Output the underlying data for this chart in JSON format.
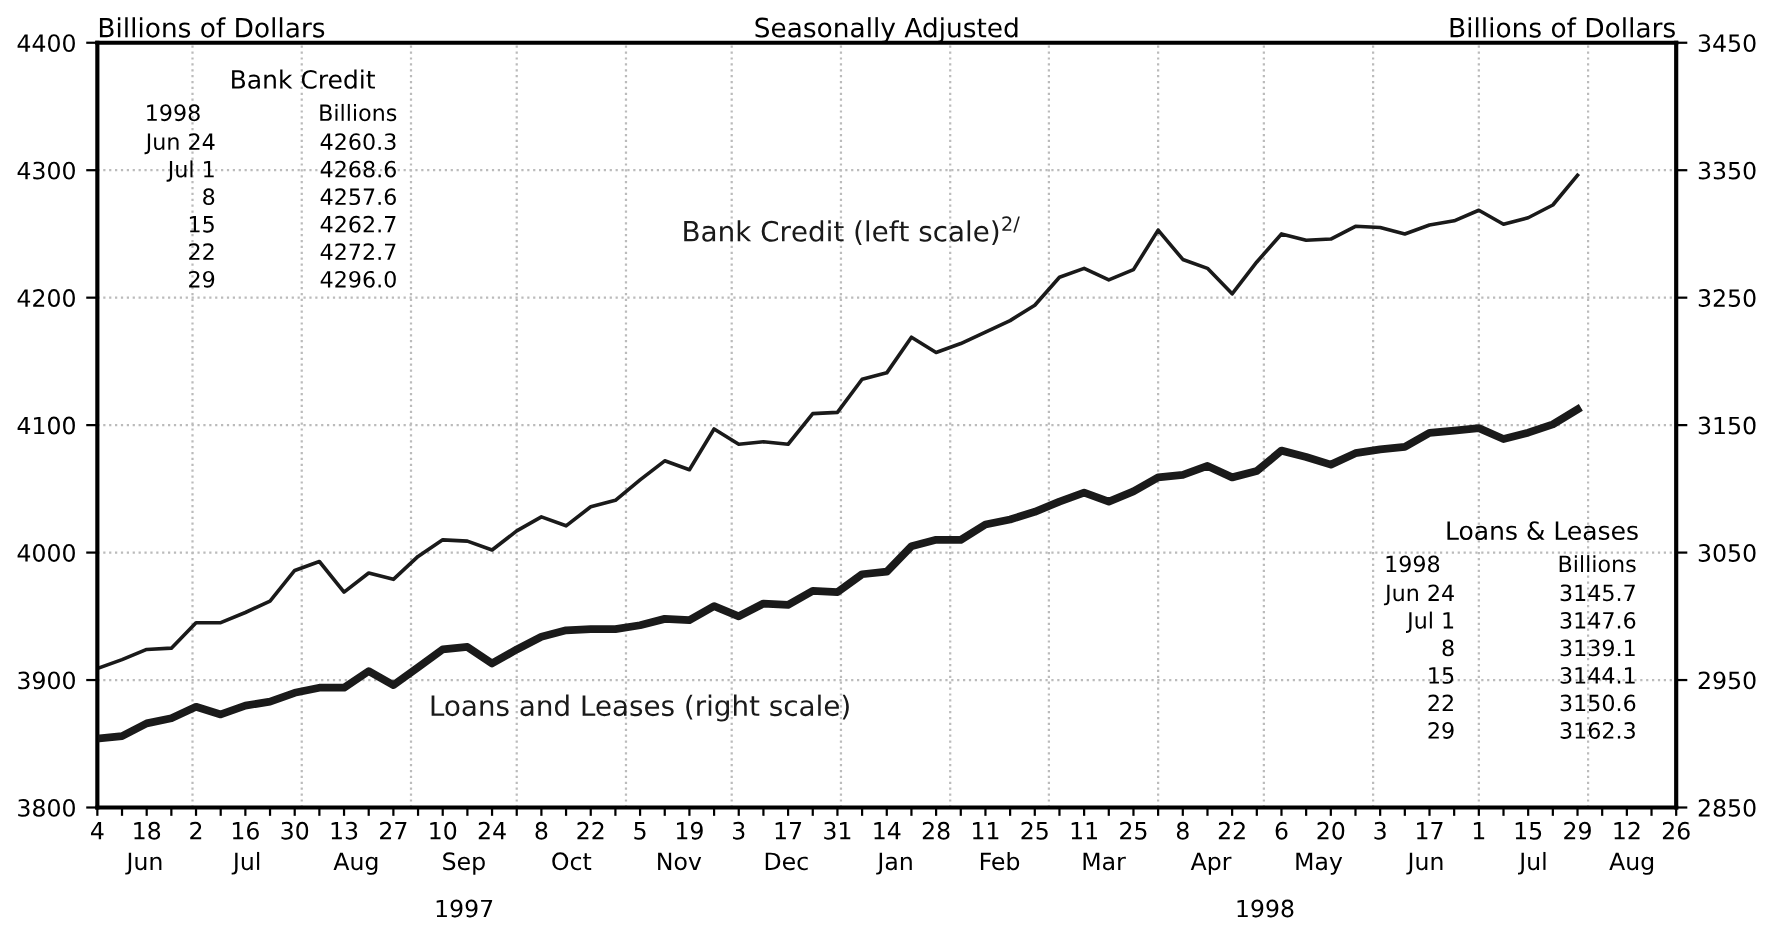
{
  "chart_data": {
    "type": "line",
    "title": "Seasonally Adjusted",
    "ylabel": "Billions of Dollars",
    "y2label": "Billions of Dollars",
    "x": [
      "1997-06-04",
      "1997-06-11",
      "1997-06-18",
      "1997-06-25",
      "1997-07-02",
      "1997-07-09",
      "1997-07-16",
      "1997-07-23",
      "1997-07-30",
      "1997-08-06",
      "1997-08-13",
      "1997-08-20",
      "1997-08-27",
      "1997-09-03",
      "1997-09-10",
      "1997-09-17",
      "1997-09-24",
      "1997-10-01",
      "1997-10-08",
      "1997-10-15",
      "1997-10-22",
      "1997-10-29",
      "1997-11-05",
      "1997-11-12",
      "1997-11-19",
      "1997-11-26",
      "1997-12-03",
      "1997-12-10",
      "1997-12-17",
      "1997-12-24",
      "1997-12-31",
      "1998-01-07",
      "1998-01-14",
      "1998-01-21",
      "1998-01-28",
      "1998-02-04",
      "1998-02-11",
      "1998-02-18",
      "1998-02-25",
      "1998-03-04",
      "1998-03-11",
      "1998-03-18",
      "1998-03-25",
      "1998-04-01",
      "1998-04-08",
      "1998-04-15",
      "1998-04-22",
      "1998-04-29",
      "1998-05-06",
      "1998-05-13",
      "1998-05-20",
      "1998-05-27",
      "1998-06-03",
      "1998-06-10",
      "1998-06-17",
      "1998-06-24",
      "1998-07-01",
      "1998-07-08",
      "1998-07-15",
      "1998-07-22",
      "1998-07-29"
    ],
    "series": [
      {
        "name": "Bank Credit (left scale)$^{2/}$",
        "color": "#1a1a1a",
        "axis": "y",
        "values": [
          3909,
          3916,
          3924,
          3925,
          3945,
          3945,
          3953,
          3962,
          3986,
          3993,
          3969,
          3984,
          3979,
          3997,
          4010,
          4009,
          4002,
          4017,
          4028,
          4021,
          4036,
          4041,
          4057,
          4072,
          4065,
          4097,
          4085,
          4087,
          4085,
          4109,
          4110,
          4136,
          4141,
          4169,
          4157,
          4164,
          4173,
          4182,
          4194,
          4216,
          4223,
          4214,
          4222,
          4253,
          4230,
          4223,
          4203,
          4228,
          4250,
          4245,
          4246,
          4256,
          4255,
          4250,
          4257,
          4260.3,
          4268.6,
          4257.6,
          4262.7,
          4272.7,
          4296.0
        ]
      },
      {
        "name": "Loans and Leases (right scale)",
        "color": "#1a1a1a",
        "axis": "y2",
        "values": [
          2904,
          2906,
          2916,
          2920,
          2929,
          2923,
          2930,
          2933,
          2940,
          2944,
          2944,
          2957,
          2946,
          2960,
          2974,
          2976,
          2963,
          2974,
          2984,
          2989,
          2990,
          2990,
          2993,
          2998,
          2997,
          3008,
          3000,
          3010,
          3009,
          3020,
          3019,
          3033,
          3035,
          3055,
          3060,
          3060,
          3072,
          3076,
          3082,
          3090,
          3097,
          3090,
          3098,
          3109,
          3111,
          3118,
          3109,
          3114,
          3130,
          3125,
          3119,
          3128,
          3131,
          3133,
          3144,
          3145.7,
          3147.6,
          3139.1,
          3144.1,
          3150.6,
          3162.3
        ]
      }
    ],
    "ylim": [
      3800,
      4400
    ],
    "yticks": [
      3800,
      3900,
      4000,
      4100,
      4200,
      4300,
      4400
    ],
    "y2lim": [
      2850,
      3450
    ],
    "y2ticks": [
      2850,
      2950,
      3050,
      3150,
      3250,
      3350,
      3450
    ],
    "xlim": [
      "1997-06-04",
      "1998-08-26"
    ],
    "xticks": [
      {
        "value": "1997-06-04",
        "label": "4"
      },
      {
        "value": "1997-06-11",
        "label": null
      },
      {
        "value": "1997-06-18",
        "label": "18"
      },
      {
        "value": "1997-06-25",
        "label": null
      },
      {
        "value": "1997-07-02",
        "label": "2"
      },
      {
        "value": "1997-07-09",
        "label": null
      },
      {
        "value": "1997-07-16",
        "label": "16"
      },
      {
        "value": "1997-07-23",
        "label": null
      },
      {
        "value": "1997-07-30",
        "label": "30"
      },
      {
        "value": "1997-08-06",
        "label": null
      },
      {
        "value": "1997-08-13",
        "label": "13"
      },
      {
        "value": "1997-08-20",
        "label": null
      },
      {
        "value": "1997-08-27",
        "label": "27"
      },
      {
        "value": "1997-09-03",
        "label": null
      },
      {
        "value": "1997-09-10",
        "label": "10"
      },
      {
        "value": "1997-09-17",
        "label": null
      },
      {
        "value": "1997-09-24",
        "label": "24"
      },
      {
        "value": "1997-10-01",
        "label": null
      },
      {
        "value": "1997-10-08",
        "label": "8"
      },
      {
        "value": "1997-10-15",
        "label": null
      },
      {
        "value": "1997-10-22",
        "label": "22"
      },
      {
        "value": "1997-10-29",
        "label": null
      },
      {
        "value": "1997-11-05",
        "label": "5"
      },
      {
        "value": "1997-11-12",
        "label": null
      },
      {
        "value": "1997-11-19",
        "label": "19"
      },
      {
        "value": "1997-11-26",
        "label": null
      },
      {
        "value": "1997-12-03",
        "label": "3"
      },
      {
        "value": "1997-12-10",
        "label": null
      },
      {
        "value": "1997-12-17",
        "label": "17"
      },
      {
        "value": "1997-12-24",
        "label": null
      },
      {
        "value": "1997-12-31",
        "label": "31"
      },
      {
        "value": "1998-01-07",
        "label": null
      },
      {
        "value": "1998-01-14",
        "label": "14"
      },
      {
        "value": "1998-01-21",
        "label": null
      },
      {
        "value": "1998-01-28",
        "label": "28"
      },
      {
        "value": "1998-02-04",
        "label": null
      },
      {
        "value": "1998-02-11",
        "label": "11"
      },
      {
        "value": "1998-02-18",
        "label": null
      },
      {
        "value": "1998-02-25",
        "label": "25"
      },
      {
        "value": "1998-03-04",
        "label": null
      },
      {
        "value": "1998-03-11",
        "label": "11"
      },
      {
        "value": "1998-03-18",
        "label": null
      },
      {
        "value": "1998-03-25",
        "label": "25"
      },
      {
        "value": "1998-04-01",
        "label": null
      },
      {
        "value": "1998-04-08",
        "label": "8"
      },
      {
        "value": "1998-04-15",
        "label": null
      },
      {
        "value": "1998-04-22",
        "label": "22"
      },
      {
        "value": "1998-04-29",
        "label": null
      },
      {
        "value": "1998-05-06",
        "label": "6"
      },
      {
        "value": "1998-05-13",
        "label": null
      },
      {
        "value": "1998-05-20",
        "label": "20"
      },
      {
        "value": "1998-05-27",
        "label": null
      },
      {
        "value": "1998-06-03",
        "label": "3"
      },
      {
        "value": "1998-06-10",
        "label": null
      },
      {
        "value": "1998-06-17",
        "label": "17"
      },
      {
        "value": "1998-06-24",
        "label": null
      },
      {
        "value": "1998-07-01",
        "label": "1"
      },
      {
        "value": "1998-07-08",
        "label": null
      },
      {
        "value": "1998-07-15",
        "label": "15"
      },
      {
        "value": "1998-07-22",
        "label": null
      },
      {
        "value": "1998-07-29",
        "label": "29"
      },
      {
        "value": "1998-08-05",
        "label": null
      },
      {
        "value": "1998-08-12",
        "label": "12"
      },
      {
        "value": "1998-08-19",
        "label": null
      },
      {
        "value": "1998-08-26",
        "label": "26"
      }
    ],
    "grid": "y",
    "ref_lines": [
      {
        "axis": "x",
        "value": "1997-07-01",
        "color": "#bbbbbb",
        "line_style": "dotted"
      },
      {
        "axis": "x",
        "value": "1997-08-01",
        "color": "#bbbbbb",
        "line_style": "dotted"
      },
      {
        "axis": "x",
        "value": "1997-09-01",
        "color": "#bbbbbb",
        "line_style": "dotted"
      },
      {
        "axis": "x",
        "value": "1997-10-01",
        "color": "#bbbbbb",
        "line_style": "dotted"
      },
      {
        "axis": "x",
        "value": "1997-11-01",
        "color": "#bbbbbb",
        "line_style": "dotted"
      },
      {
        "axis": "x",
        "value": "1997-12-01",
        "color": "#bbbbbb",
        "line_style": "dotted"
      },
      {
        "axis": "x",
        "value": "1998-01-01",
        "color": "#bbbbbb",
        "line_style": "dotted"
      },
      {
        "axis": "x",
        "value": "1998-02-01",
        "color": "#bbbbbb",
        "line_style": "dotted"
      },
      {
        "axis": "x",
        "value": "1998-03-01",
        "color": "#bbbbbb",
        "line_style": "dotted"
      },
      {
        "axis": "x",
        "value": "1998-04-01",
        "color": "#bbbbbb",
        "line_style": "dotted"
      },
      {
        "axis": "x",
        "value": "1998-05-01",
        "color": "#bbbbbb",
        "line_style": "dotted"
      },
      {
        "axis": "x",
        "value": "1998-06-01",
        "color": "#bbbbbb",
        "line_style": "dotted"
      },
      {
        "axis": "x",
        "value": "1998-07-01",
        "color": "#bbbbbb",
        "line_style": "dotted"
      },
      {
        "axis": "x",
        "value": "1998-08-01",
        "color": "#bbbbbb",
        "line_style": "dotted"
      }
    ],
    "legend": false,
    "annotations": [
      "Bank Credit",
      "1998",
      "Billions",
      "Jun 24",
      "4260.3",
      "Jul 1",
      "4268.6",
      "8",
      "4257.6",
      "15",
      "4262.7",
      "22",
      "4272.7",
      "29",
      "4296.0",
      "Loans & Leases",
      "1998",
      "Billions",
      "Jun 24",
      "3145.7",
      "Jul 1",
      "3147.6",
      "8",
      "3139.1",
      "15",
      "3144.1",
      "22",
      "3150.6",
      "29",
      "3162.3",
      "Jun",
      "Jul",
      "Aug",
      "Sep",
      "Oct",
      "Nov",
      "Dec",
      "Jan",
      "Feb",
      "Mar",
      "Apr",
      "May",
      "Jun",
      "Jul",
      "Aug",
      "1997",
      "1998"
    ]
  }
}
